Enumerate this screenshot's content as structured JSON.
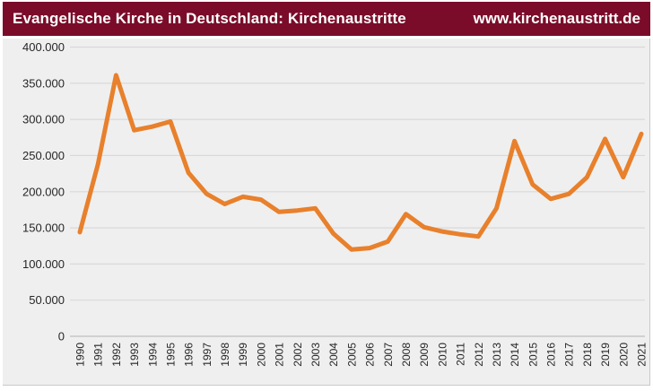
{
  "header": {
    "title": "Evangelische Kirche in Deutschland: Kirchenaustritte",
    "website": "www.kirchenaustritt.de",
    "background_color": "#7A0C2A",
    "text_color": "#FFFFFF"
  },
  "chart_data": {
    "type": "line",
    "title": "Evangelische Kirche in Deutschland: Kirchenaustritte",
    "series_name": "Kirchenaustritte",
    "categories": [
      "1990",
      "1991",
      "1992",
      "1993",
      "1994",
      "1995",
      "1996",
      "1997",
      "1998",
      "1999",
      "2000",
      "2001",
      "2002",
      "2003",
      "2004",
      "2005",
      "2006",
      "2007",
      "2008",
      "2009",
      "2010",
      "2011",
      "2012",
      "2013",
      "2014",
      "2015",
      "2016",
      "2017",
      "2018",
      "2019",
      "2020",
      "2021"
    ],
    "values": [
      144000,
      238000,
      361000,
      285000,
      290000,
      297000,
      226000,
      197000,
      183000,
      193000,
      189000,
      172000,
      174000,
      177000,
      142000,
      120000,
      122000,
      131000,
      169000,
      151000,
      145000,
      141000,
      138000,
      177000,
      270000,
      210000,
      190000,
      197000,
      220000,
      273000,
      220000,
      280000
    ],
    "xlabel": "",
    "ylabel": "",
    "ylim": [
      0,
      400000
    ],
    "y_ticks": [
      "0",
      "50.000",
      "100.000",
      "150.000",
      "200.000",
      "250.000",
      "300.000",
      "350.000",
      "400.000"
    ],
    "y_tick_values": [
      0,
      50000,
      100000,
      150000,
      200000,
      250000,
      300000,
      350000,
      400000
    ],
    "grid": true,
    "legend": "none",
    "line_color": "#E8802C",
    "background_color": "#EFEFEF",
    "gridline_color": "#D9D9D9",
    "axis_color": "#BFBFBF"
  }
}
